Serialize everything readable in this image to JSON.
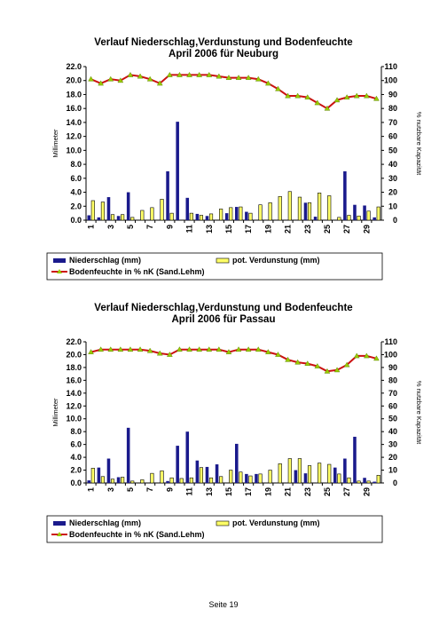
{
  "charts": [
    {
      "title_line1": "Verlauf Niederschlag,Verdunstung und Bodenfeuchte",
      "title_line2": "April 2006 für Neuburg",
      "ylabel_left": "Millimeter",
      "ylabel_right": "% nutzbare Kapazität",
      "legend": {
        "precip": "Niederschlag (mm)",
        "evap": "pot. Verdunstung (mm)",
        "soil": "Bodenfeuchte in % nK (Sand.Lehm)"
      }
    },
    {
      "title_line1": "Verlauf Niederschlag,Verdunstung und Bodenfeuchte",
      "title_line2": "April 2006 für Passau",
      "ylabel_left": "Millimeter",
      "ylabel_right": "% nutzbare Kapazität",
      "legend": {
        "precip": "Niederschlag (mm)",
        "evap": "pot. Verdunstung (mm)",
        "soil": "Bodenfeuchte in % nK (Sand.Lehm)"
      }
    }
  ],
  "footer": {
    "page_label": "Seite 19"
  },
  "colors": {
    "precip": "#1a1a8c",
    "evap": "#ffff66",
    "soil_line": "#cc1111",
    "soil_marker": "#99cc00"
  },
  "chart_data": [
    {
      "type": "bar",
      "title": "Verlauf Niederschlag,Verdunstung und Bodenfeuchte April 2006 für Neuburg",
      "ylabel": "Millimeter",
      "y2label": "% nutzbare Kapazität",
      "ylim": [
        0,
        22
      ],
      "y2lim": [
        0,
        110
      ],
      "yticks": [
        "0.0",
        "2.0",
        "4.0",
        "6.0",
        "8.0",
        "10.0",
        "12.0",
        "14.0",
        "16.0",
        "18.0",
        "20.0",
        "22.0"
      ],
      "y2ticks": [
        "0",
        "10",
        "20",
        "30",
        "40",
        "50",
        "60",
        "70",
        "80",
        "90",
        "100",
        "110"
      ],
      "xticks": [
        "1",
        "3",
        "5",
        "7",
        "9",
        "11",
        "13",
        "15",
        "17",
        "19",
        "21",
        "23",
        "25",
        "27",
        "29"
      ],
      "categories": [
        1,
        2,
        3,
        4,
        5,
        6,
        7,
        8,
        9,
        10,
        11,
        12,
        13,
        14,
        15,
        16,
        17,
        18,
        19,
        20,
        21,
        22,
        23,
        24,
        25,
        26,
        27,
        28,
        29,
        30
      ],
      "grid": false,
      "legend_position": "bottom",
      "series": [
        {
          "name": "Niederschlag (mm)",
          "type": "bar",
          "values": [
            0.7,
            0.4,
            3.3,
            0.6,
            4.0,
            0,
            0,
            0,
            7.0,
            14.1,
            3.2,
            0.9,
            0.6,
            0,
            1.0,
            1.9,
            1.2,
            0,
            0,
            0,
            0,
            0,
            2.5,
            0.5,
            0,
            0,
            7.0,
            2.2,
            2.1,
            0.4
          ]
        },
        {
          "name": "pot. Verdunstung (mm)",
          "type": "bar",
          "values": [
            2.8,
            2.6,
            0.8,
            0.8,
            0.4,
            1.4,
            1.8,
            3.0,
            1.0,
            0,
            1.0,
            0.7,
            0.9,
            1.6,
            1.8,
            1.9,
            1.0,
            2.2,
            2.5,
            3.4,
            4.1,
            3.3,
            2.5,
            3.9,
            3.5,
            0.4,
            0.7,
            0.6,
            1.3,
            1.9
          ]
        },
        {
          "name": "Bodenfeuchte in % nK (Sand.Lehm)",
          "type": "line",
          "axis": "right",
          "values": [
            101,
            98,
            101,
            100,
            104,
            103,
            101,
            98,
            104,
            104,
            104,
            104,
            104,
            103,
            102,
            102,
            102,
            101,
            98,
            94,
            89,
            89,
            88,
            84,
            80,
            86,
            88,
            89,
            89,
            87
          ]
        }
      ]
    },
    {
      "type": "bar",
      "title": "Verlauf Niederschlag,Verdunstung und Bodenfeuchte April 2006 für Passau",
      "ylabel": "Millimeter",
      "y2label": "% nutzbare Kapazität",
      "ylim": [
        0,
        22
      ],
      "y2lim": [
        0,
        110
      ],
      "yticks": [
        "0.0",
        "2.0",
        "4.0",
        "6.0",
        "8.0",
        "10.0",
        "12.0",
        "14.0",
        "16.0",
        "18.0",
        "20.0",
        "22.0"
      ],
      "y2ticks": [
        "0",
        "10",
        "20",
        "30",
        "40",
        "50",
        "60",
        "70",
        "80",
        "90",
        "100",
        "110"
      ],
      "xticks": [
        "1",
        "3",
        "5",
        "7",
        "9",
        "11",
        "13",
        "15",
        "17",
        "19",
        "21",
        "23",
        "25",
        "27",
        "29"
      ],
      "categories": [
        1,
        2,
        3,
        4,
        5,
        6,
        7,
        8,
        9,
        10,
        11,
        12,
        13,
        14,
        15,
        16,
        17,
        18,
        19,
        20,
        21,
        22,
        23,
        24,
        25,
        26,
        27,
        28,
        29,
        30
      ],
      "grid": false,
      "legend_position": "bottom",
      "series": [
        {
          "name": "Niederschlag (mm)",
          "type": "bar",
          "values": [
            0.4,
            2.4,
            3.8,
            0.9,
            8.6,
            0,
            0,
            0,
            0.3,
            5.8,
            8.0,
            3.5,
            2.5,
            2.9,
            0,
            6.1,
            1.4,
            1.4,
            0,
            0,
            0,
            2.0,
            1.5,
            0,
            0,
            2.4,
            3.8,
            7.2,
            0.8,
            0.2
          ]
        },
        {
          "name": "pot. Verdunstung (mm)",
          "type": "bar",
          "values": [
            2.3,
            1.0,
            0.6,
            0.9,
            0.3,
            0.5,
            1.5,
            1.9,
            0.8,
            0.7,
            0.8,
            2.4,
            0.8,
            1.0,
            2.0,
            1.7,
            1.1,
            1.4,
            2.0,
            3.0,
            3.8,
            3.8,
            2.7,
            3.1,
            2.9,
            1.4,
            0.8,
            0.3,
            0.3,
            1.2
          ]
        },
        {
          "name": "Bodenfeuchte in % nK (Sand.Lehm)",
          "type": "line",
          "axis": "right",
          "values": [
            102,
            104,
            104,
            104,
            104,
            104,
            103,
            101,
            100,
            104,
            104,
            104,
            104,
            104,
            102,
            104,
            104,
            104,
            102,
            100,
            96,
            94,
            93,
            91,
            87,
            88,
            92,
            99,
            99,
            97
          ]
        }
      ]
    }
  ]
}
